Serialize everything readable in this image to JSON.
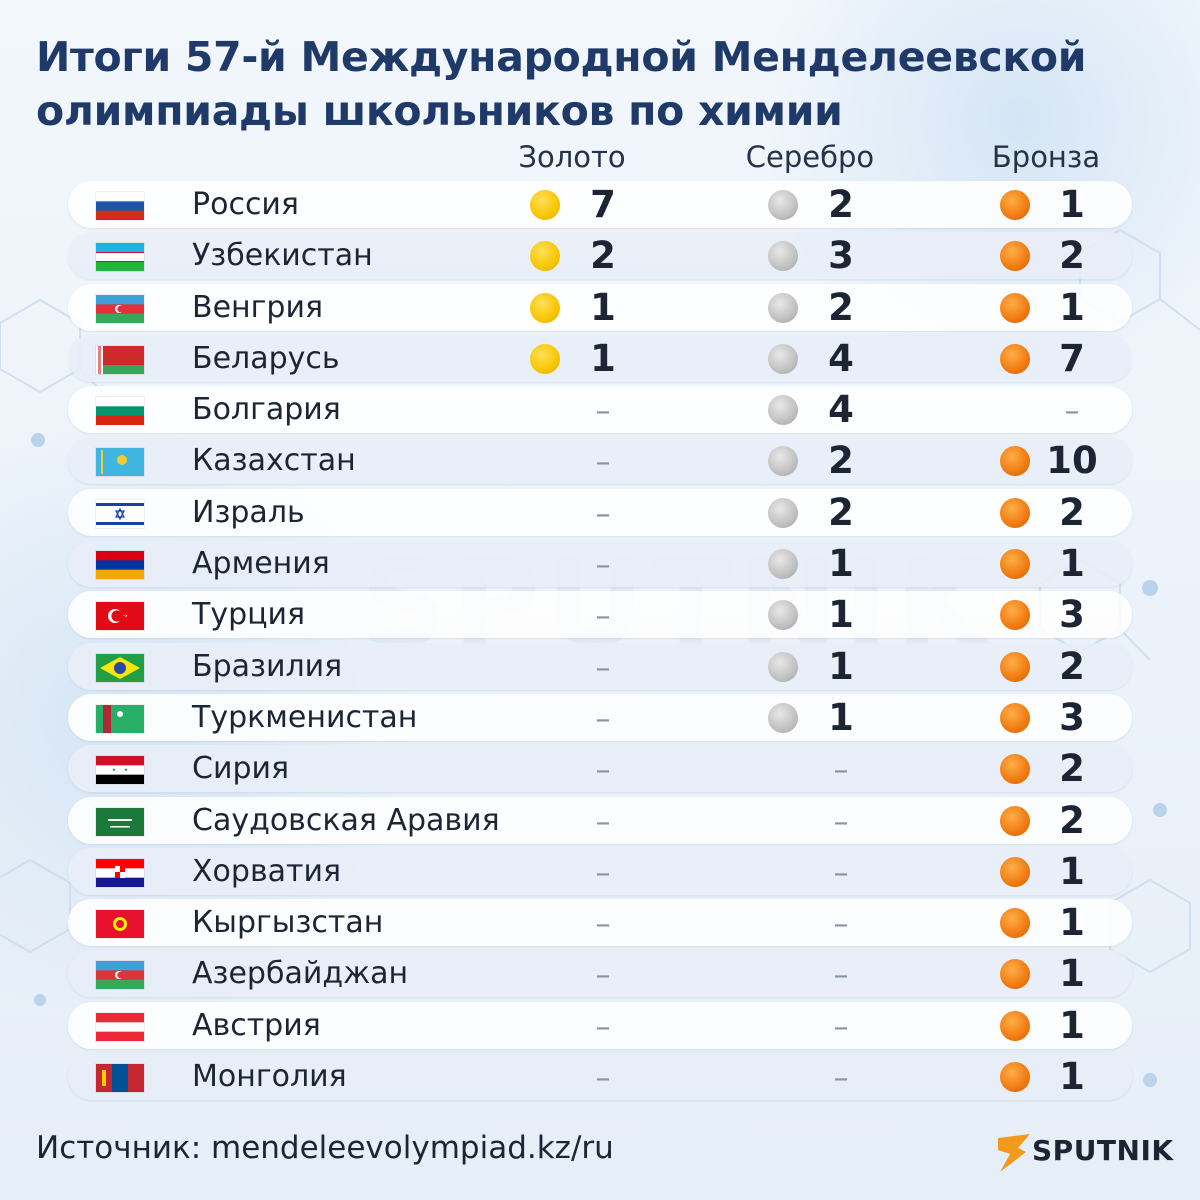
{
  "title": "Итоги 57-й Международной Менделеевской олимпиады школьников по химии",
  "columns": {
    "gold": "Золото",
    "silver": "Серебро",
    "bronze": "Бронза"
  },
  "dash": "–",
  "source": "Источник: mendeleevolympiad.kz/ru",
  "logo_text": "SPUTNIK",
  "colors": {
    "gold": "#f7c500",
    "silver": "#bdbdbd",
    "bronze": "#f07a10",
    "title": "#1f3a68"
  },
  "rows": [
    {
      "country": "Россия",
      "flag": "russia-flag-icon",
      "gold": "7",
      "silver": "2",
      "bronze": "1"
    },
    {
      "country": "Узбекистан",
      "flag": "uzbekistan-flag-icon",
      "gold": "2",
      "silver": "3",
      "bronze": "2"
    },
    {
      "country": "Венгрия",
      "flag": "azerbaijan-flag-icon",
      "gold": "1",
      "silver": "2",
      "bronze": "1"
    },
    {
      "country": "Беларусь",
      "flag": "belarus-flag-icon",
      "gold": "1",
      "silver": "4",
      "bronze": "7"
    },
    {
      "country": "Болгария",
      "flag": "bulgaria-flag-icon",
      "gold": null,
      "silver": "4",
      "bronze": null
    },
    {
      "country": "Казахстан",
      "flag": "kazakhstan-flag-icon",
      "gold": null,
      "silver": "2",
      "bronze": "10"
    },
    {
      "country": "Израль",
      "flag": "israel-flag-icon",
      "gold": null,
      "silver": "2",
      "bronze": "2"
    },
    {
      "country": "Армения",
      "flag": "armenia-flag-icon",
      "gold": null,
      "silver": "1",
      "bronze": "1"
    },
    {
      "country": "Турция",
      "flag": "turkey-flag-icon",
      "gold": null,
      "silver": "1",
      "bronze": "3"
    },
    {
      "country": "Бразилия",
      "flag": "brazil-flag-icon",
      "gold": null,
      "silver": "1",
      "bronze": "2"
    },
    {
      "country": "Туркменистан",
      "flag": "turkmenistan-flag-icon",
      "gold": null,
      "silver": "1",
      "bronze": "3"
    },
    {
      "country": "Сирия",
      "flag": "syria-flag-icon",
      "gold": null,
      "silver": null,
      "bronze": "2"
    },
    {
      "country": "Саудовская Аравия",
      "flag": "saudi-arabia-flag-icon",
      "gold": null,
      "silver": null,
      "bronze": "2"
    },
    {
      "country": "Хорватия",
      "flag": "croatia-flag-icon",
      "gold": null,
      "silver": null,
      "bronze": "1"
    },
    {
      "country": "Кыргызстан",
      "flag": "kyrgyzstan-flag-icon",
      "gold": null,
      "silver": null,
      "bronze": "1"
    },
    {
      "country": "Азербайджан",
      "flag": "azerbaijan-flag-icon",
      "gold": null,
      "silver": null,
      "bronze": "1"
    },
    {
      "country": "Австрия",
      "flag": "austria-flag-icon",
      "gold": null,
      "silver": null,
      "bronze": "1"
    },
    {
      "country": "Монголия",
      "flag": "mongolia-flag-icon",
      "gold": null,
      "silver": null,
      "bronze": "1"
    }
  ],
  "chart_data": {
    "type": "table",
    "columns": [
      "Золото",
      "Серебро",
      "Бронза"
    ],
    "categories": [
      "Россия",
      "Узбекистан",
      "Венгрия",
      "Беларусь",
      "Болгария",
      "Казахстан",
      "Израль",
      "Армения",
      "Турция",
      "Бразилия",
      "Туркменистан",
      "Сирия",
      "Саудовская Аравия",
      "Хорватия",
      "Кыргызстан",
      "Азербайджан",
      "Австрия",
      "Монголия"
    ],
    "series": [
      {
        "name": "Золото",
        "values": [
          7,
          2,
          1,
          1,
          null,
          null,
          null,
          null,
          null,
          null,
          null,
          null,
          null,
          null,
          null,
          null,
          null,
          null
        ]
      },
      {
        "name": "Серебро",
        "values": [
          2,
          3,
          2,
          4,
          4,
          2,
          2,
          1,
          1,
          1,
          1,
          null,
          null,
          null,
          null,
          null,
          null,
          null
        ]
      },
      {
        "name": "Бронза",
        "values": [
          1,
          2,
          1,
          7,
          null,
          10,
          2,
          1,
          3,
          2,
          3,
          2,
          2,
          1,
          1,
          1,
          1,
          1
        ]
      }
    ]
  }
}
